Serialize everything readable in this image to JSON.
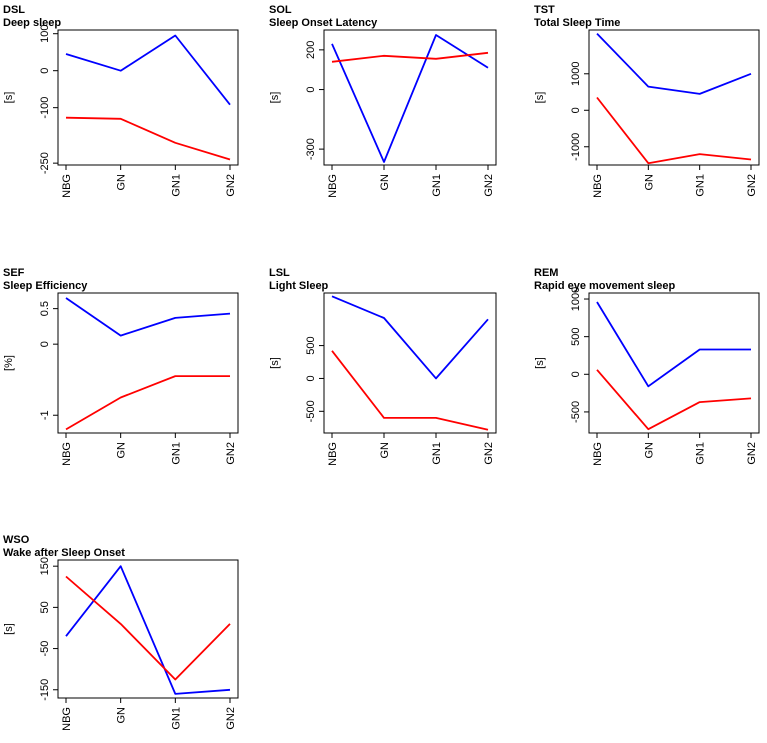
{
  "chart_data": [
    {
      "type": "line",
      "title": "DSL",
      "subtitle": "Deep sleep",
      "ylabel": "[s]",
      "categories": [
        "NBG",
        "GN",
        "GN1",
        "GN2"
      ],
      "yticks": [
        100,
        0,
        -100,
        -250
      ],
      "ylim": [
        -255,
        110
      ],
      "series": [
        {
          "name": "blue",
          "color": "#0000ff",
          "values": [
            45,
            0,
            95,
            -92
          ]
        },
        {
          "name": "red",
          "color": "#ff0000",
          "values": [
            -127,
            -130,
            -195,
            -240
          ]
        }
      ]
    },
    {
      "type": "line",
      "title": "SOL",
      "subtitle": "Sleep Onset Latency",
      "ylabel": "[s]",
      "categories": [
        "NBG",
        "GN",
        "GN1",
        "GN2"
      ],
      "yticks": [
        200,
        0,
        -300
      ],
      "ylim": [
        -380,
        300
      ],
      "series": [
        {
          "name": "blue",
          "color": "#0000ff",
          "values": [
            230,
            -365,
            275,
            110
          ]
        },
        {
          "name": "red",
          "color": "#ff0000",
          "values": [
            140,
            170,
            155,
            185
          ]
        }
      ]
    },
    {
      "type": "line",
      "title": "TST",
      "subtitle": "Total Sleep Time",
      "ylabel": "[s]",
      "categories": [
        "NBG",
        "GN",
        "GN1",
        "GN2"
      ],
      "yticks": [
        1000,
        0,
        -1000
      ],
      "ylim": [
        -1500,
        2200
      ],
      "series": [
        {
          "name": "blue",
          "color": "#0000ff",
          "values": [
            2100,
            650,
            450,
            1000
          ]
        },
        {
          "name": "red",
          "color": "#ff0000",
          "values": [
            350,
            -1450,
            -1200,
            -1350
          ]
        }
      ]
    },
    {
      "type": "line",
      "title": "SEF",
      "subtitle": "Sleep Efficiency",
      "ylabel": "[%]",
      "categories": [
        "NBG",
        "GN",
        "GN1",
        "GN2"
      ],
      "yticks": [
        0.5,
        0.0,
        -1.0
      ],
      "ylim": [
        -1.25,
        0.72
      ],
      "series": [
        {
          "name": "blue",
          "color": "#0000ff",
          "values": [
            0.65,
            0.12,
            0.37,
            0.43
          ]
        },
        {
          "name": "red",
          "color": "#ff0000",
          "values": [
            -1.2,
            -0.75,
            -0.45,
            -0.45
          ]
        }
      ]
    },
    {
      "type": "line",
      "title": "LSL",
      "subtitle": "Light Sleep",
      "ylabel": "[s]",
      "categories": [
        "NBG",
        "GN",
        "GN1",
        "GN2"
      ],
      "yticks": [
        500,
        0,
        -500
      ],
      "ylim": [
        -830,
        1300
      ],
      "series": [
        {
          "name": "blue",
          "color": "#0000ff",
          "values": [
            1250,
            920,
            0,
            900
          ]
        },
        {
          "name": "red",
          "color": "#ff0000",
          "values": [
            420,
            -600,
            -600,
            -780
          ]
        }
      ]
    },
    {
      "type": "line",
      "title": "REM",
      "subtitle": "Rapid eye movement sleep",
      "ylabel": "[s]",
      "categories": [
        "NBG",
        "GN",
        "GN1",
        "GN2"
      ],
      "yticks": [
        1000,
        500,
        0,
        -500
      ],
      "ylim": [
        -780,
        1080
      ],
      "series": [
        {
          "name": "blue",
          "color": "#0000ff",
          "values": [
            960,
            -160,
            330,
            330
          ]
        },
        {
          "name": "red",
          "color": "#ff0000",
          "values": [
            60,
            -730,
            -370,
            -320
          ]
        }
      ]
    },
    {
      "type": "line",
      "title": "WSO",
      "subtitle": "Wake after Sleep Onset",
      "ylabel": "[s]",
      "categories": [
        "NBG",
        "GN",
        "GN1",
        "GN2"
      ],
      "yticks": [
        150,
        50,
        -50,
        -150
      ],
      "ylim": [
        -170,
        165
      ],
      "series": [
        {
          "name": "blue",
          "color": "#0000ff",
          "values": [
            -20,
            150,
            -160,
            -150
          ]
        },
        {
          "name": "red",
          "color": "#ff0000",
          "values": [
            125,
            10,
            -125,
            10
          ]
        }
      ]
    }
  ]
}
